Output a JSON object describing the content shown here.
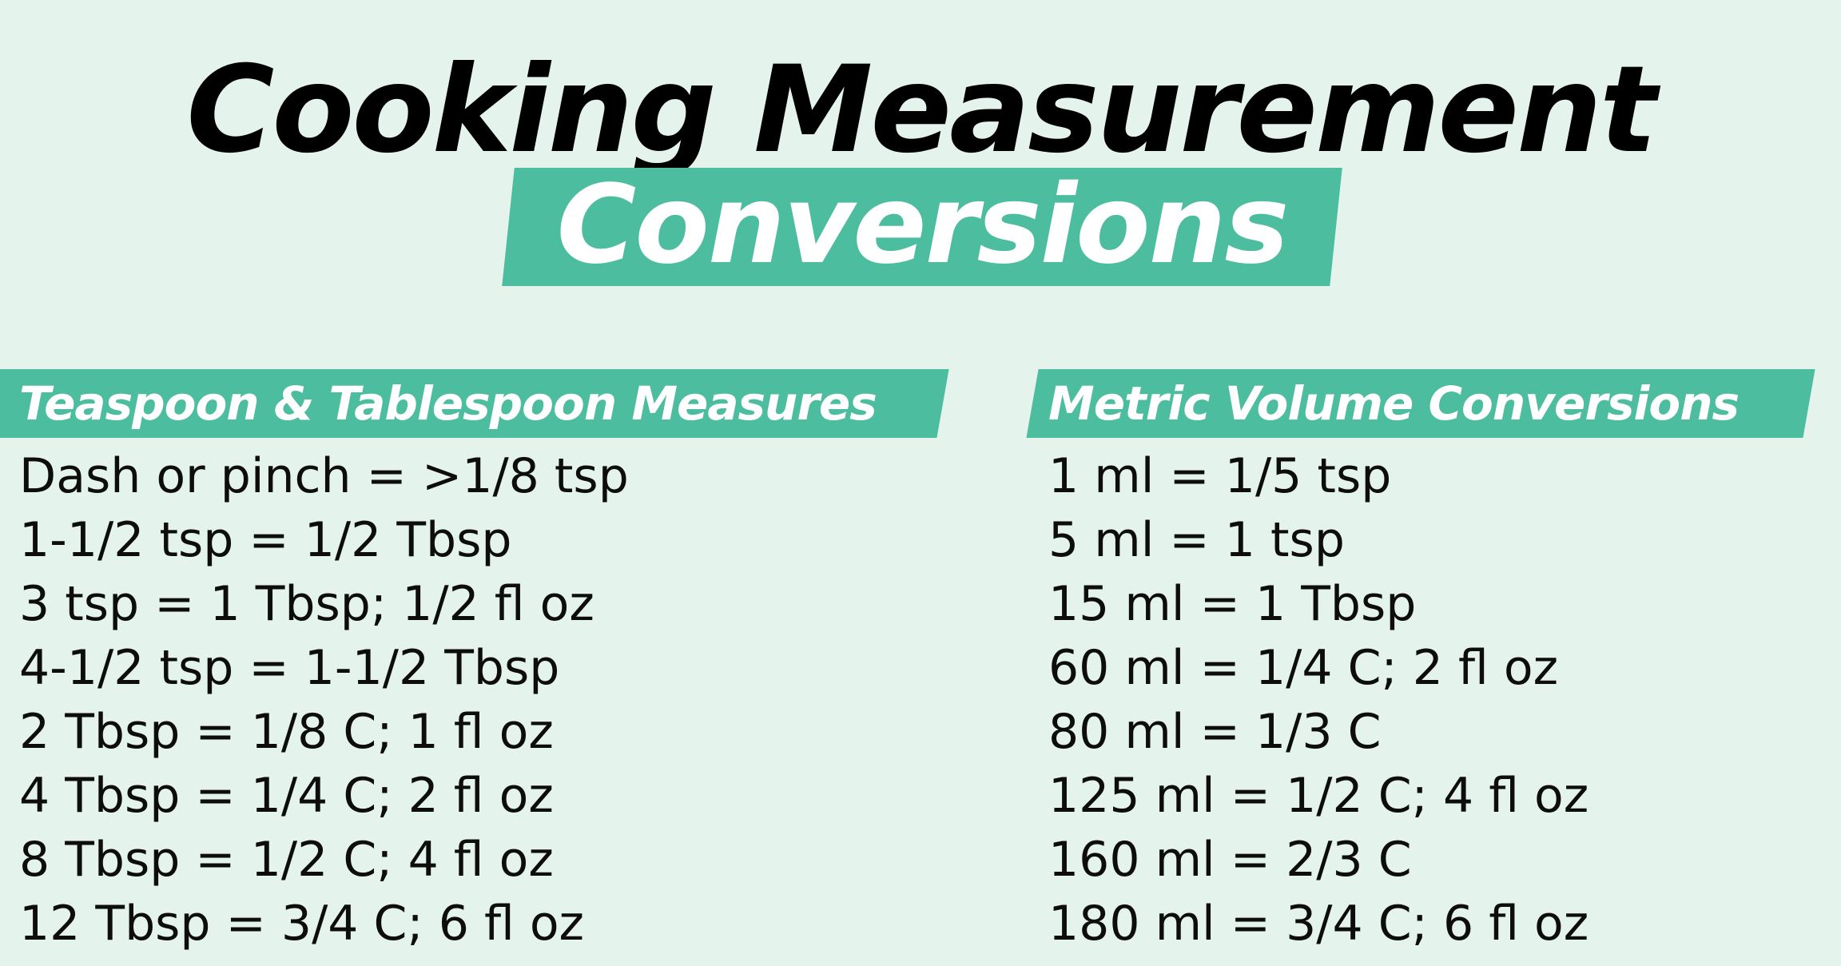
{
  "header": {
    "title_line1": "Cooking Measurement",
    "title_line2": "Conversions"
  },
  "sections": [
    {
      "title": "Teaspoon & Tablespoon Measures",
      "rows": [
        "Dash or pinch = >1/8 tsp",
        "1-1/2 tsp = 1/2 Tbsp",
        "3 tsp = 1 Tbsp; 1/2 fl oz",
        "4-1/2 tsp = 1-1/2 Tbsp",
        "2 Tbsp = 1/8 C; 1 fl oz",
        "4 Tbsp = 1/4 C; 2 fl oz",
        "8 Tbsp = 1/2 C; 4 fl oz",
        "12 Tbsp = 3/4 C; 6 fl oz"
      ]
    },
    {
      "title": "Metric Volume Conversions",
      "rows": [
        "1 ml = 1/5 tsp",
        "5 ml = 1 tsp",
        "15 ml = 1 Tbsp",
        "60 ml = 1/4 C; 2 fl oz",
        "80 ml = 1/3 C",
        "125 ml = 1/2 C; 4 fl oz",
        "160 ml = 2/3 C",
        "180 ml = 3/4 C; 6 fl oz"
      ]
    }
  ],
  "colors": {
    "background": "#e4f3ec",
    "accent": "#4dbda0",
    "text": "#0d0d0d",
    "highlight_text": "#ffffff"
  }
}
